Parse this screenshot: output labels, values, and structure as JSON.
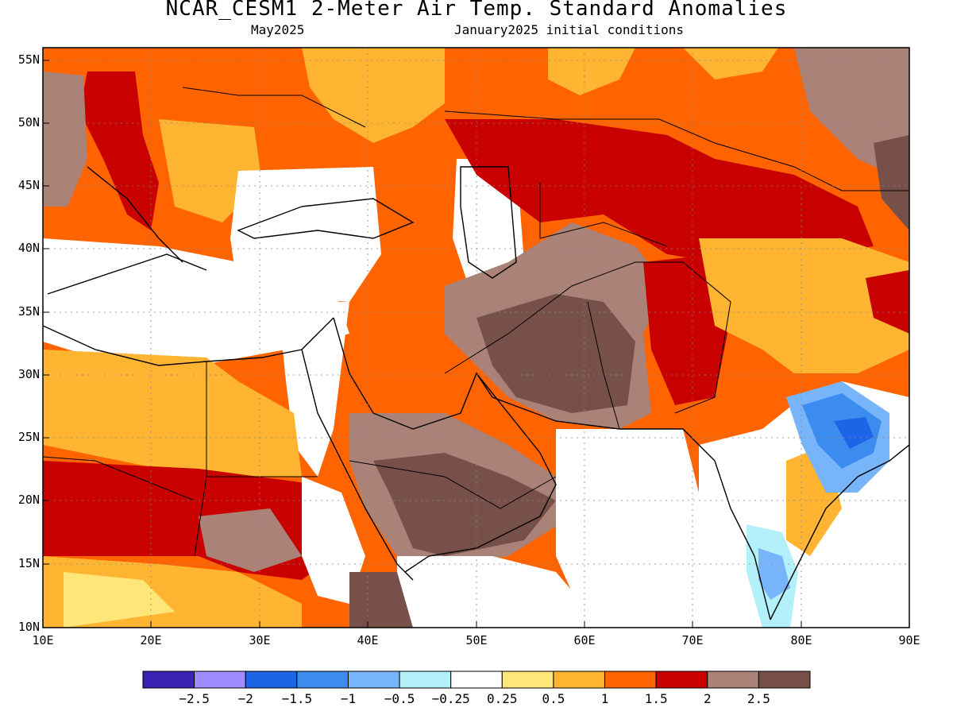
{
  "title": "NCAR_CESM1 2-Meter Air Temp. Standard Anomalies",
  "valid_month": "May2025",
  "init_conditions": "January2025 initial conditions",
  "lat_labels": [
    "55N",
    "50N",
    "45N",
    "40N",
    "35N",
    "30N",
    "25N",
    "20N",
    "15N",
    "10N"
  ],
  "lon_labels": [
    "10E",
    "20E",
    "30E",
    "40E",
    "50E",
    "60E",
    "70E",
    "80E",
    "90E"
  ],
  "colorbar": {
    "colors": [
      "#3a23b4",
      "#a08cff",
      "#1e64e6",
      "#3c8cf0",
      "#78b4fa",
      "#b4f0fa",
      "#ffffff",
      "#ffe678",
      "#ffb432",
      "#ff6400",
      "#c80000",
      "#aa8278",
      "#78504a"
    ],
    "labels": [
      "−2.5",
      "−2",
      "−1.5",
      "−1",
      "−0.5",
      "−0.25",
      "0.25",
      "0.5",
      "1",
      "1.5",
      "2",
      "2.5"
    ]
  },
  "map_extent": {
    "lon": [
      10,
      90
    ],
    "lat": [
      10,
      56
    ]
  }
}
